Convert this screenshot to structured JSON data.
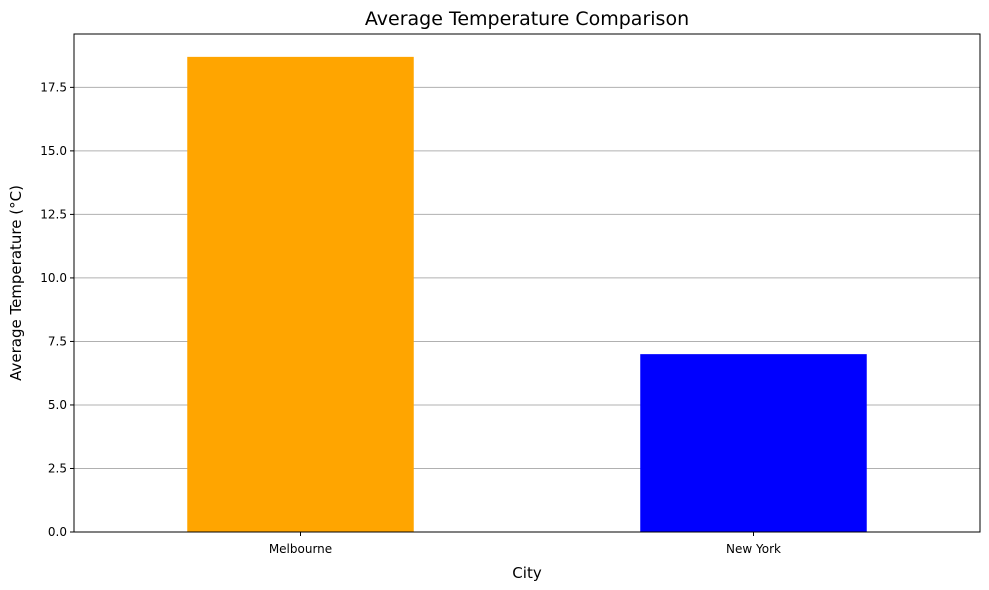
{
  "chart_data": {
    "type": "bar",
    "title": "Average Temperature Comparison",
    "xlabel": "City",
    "ylabel": "Average Temperature (°C)",
    "categories": [
      "Melbourne",
      "New York"
    ],
    "values": [
      18.7,
      7.0
    ],
    "colors": [
      "#ffa500",
      "#0000ff"
    ],
    "ylim": [
      0,
      19.6
    ],
    "yticks": [
      0.0,
      2.5,
      5.0,
      7.5,
      10.0,
      12.5,
      15.0,
      17.5
    ],
    "ytick_labels": [
      "0.0",
      "2.5",
      "5.0",
      "7.5",
      "10.0",
      "12.5",
      "15.0",
      "17.5"
    ],
    "grid": "y-major",
    "legend": "none"
  }
}
